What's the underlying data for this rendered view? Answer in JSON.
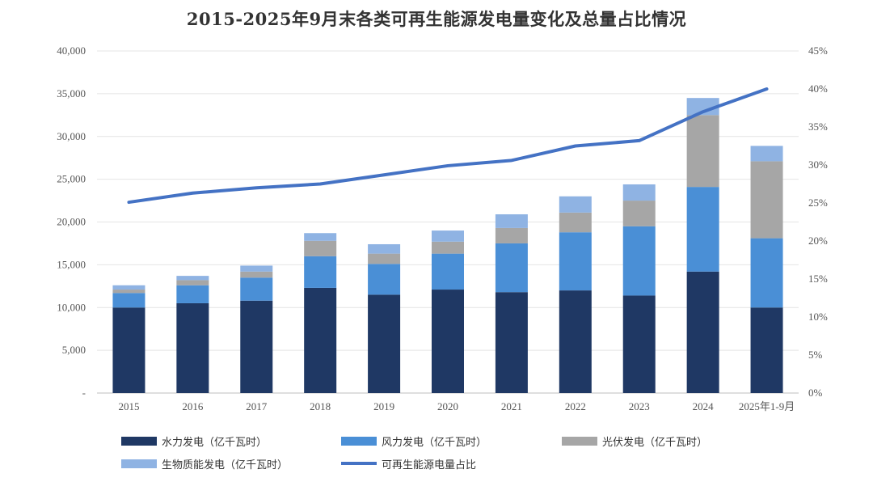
{
  "chart_data": {
    "type": "bar",
    "title": "2015-2025年9月末各类可再生能源发电量变化及总量占比情况",
    "categories": [
      "2015",
      "2016",
      "2017",
      "2018",
      "2019",
      "2020",
      "2021",
      "2022",
      "2023",
      "2024",
      "2025年1-9月"
    ],
    "stacked": true,
    "series": [
      {
        "name": "水力发电（亿千瓦时）",
        "color": "#1f3864",
        "axis": "left",
        "values": [
          10000,
          10500,
          10800,
          12300,
          11500,
          12100,
          11800,
          12000,
          11400,
          14200,
          10000
        ]
      },
      {
        "name": "风力发电（亿千瓦时）",
        "color": "#4a8fd6",
        "axis": "left",
        "values": [
          1700,
          2100,
          2700,
          3700,
          3600,
          4200,
          5700,
          6800,
          8100,
          9900,
          8100
        ]
      },
      {
        "name": "光伏发电（亿千瓦时）",
        "color": "#a6a6a6",
        "axis": "left",
        "values": [
          400,
          600,
          700,
          1800,
          1200,
          1400,
          1800,
          2300,
          3000,
          8400,
          9000
        ]
      },
      {
        "name": "生物质能发电（亿千瓦时）",
        "color": "#8fb3e3",
        "axis": "left",
        "values": [
          500,
          500,
          700,
          900,
          1100,
          1300,
          1600,
          1900,
          1900,
          2000,
          1800
        ]
      }
    ],
    "line_series": {
      "name": "可再生能源电量占比",
      "color": "#4472c4",
      "axis": "right",
      "values": [
        25.1,
        26.3,
        27.0,
        27.5,
        28.7,
        29.9,
        30.6,
        32.5,
        33.2,
        37.0,
        40.0
      ]
    },
    "y_left": {
      "min": 0,
      "max": 40000,
      "ticks": [
        "-",
        "5,000",
        "10,000",
        "15,000",
        "20,000",
        "25,000",
        "30,000",
        "35,000",
        "40,000"
      ]
    },
    "y_right": {
      "min": 0,
      "max": 45,
      "ticks": [
        "0%",
        "5%",
        "10%",
        "15%",
        "20%",
        "25%",
        "30%",
        "35%",
        "40%",
        "45%"
      ]
    },
    "grid": true,
    "legend_position": "bottom"
  }
}
